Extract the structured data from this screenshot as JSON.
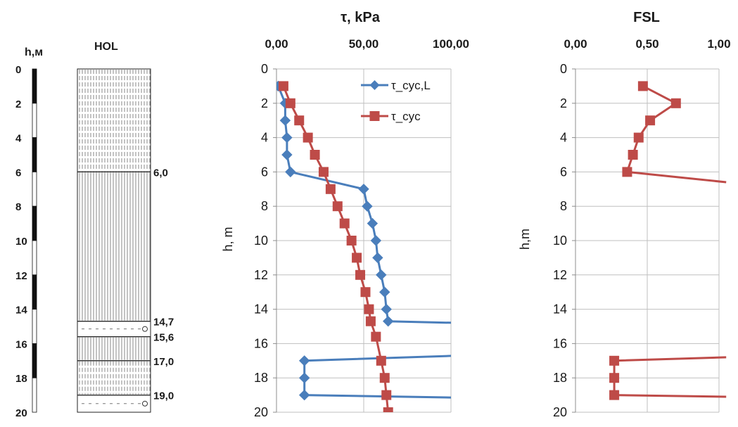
{
  "log_panel": {
    "depth_label": "h,м",
    "column_label": "HOL",
    "depth_ticks": [
      "0",
      "2",
      "4",
      "6",
      "8",
      "10",
      "12",
      "14",
      "16",
      "18",
      "20"
    ],
    "depth_range": [
      0,
      20
    ],
    "layer_boundaries": [
      {
        "depth": 6.0,
        "label": "6,0"
      },
      {
        "depth": 14.7,
        "label": "14,7"
      },
      {
        "depth": 15.6,
        "label": "15,6"
      },
      {
        "depth": 17.0,
        "label": "17,0"
      },
      {
        "depth": 19.0,
        "label": "19,0"
      }
    ],
    "layers": [
      {
        "top": 0,
        "bottom": 6.0,
        "pattern": "dotted-lines"
      },
      {
        "top": 6.0,
        "bottom": 14.7,
        "pattern": "lines"
      },
      {
        "top": 14.7,
        "bottom": 15.6,
        "pattern": "dashed-gravel"
      },
      {
        "top": 15.6,
        "bottom": 17.0,
        "pattern": "lines"
      },
      {
        "top": 17.0,
        "bottom": 19.0,
        "pattern": "dotted-lines"
      },
      {
        "top": 19.0,
        "bottom": 20.0,
        "pattern": "dashed-gravel"
      }
    ]
  },
  "chart_data": [
    {
      "type": "line",
      "title": "τ, kPa",
      "xlabel": "",
      "ylabel": "h, m",
      "xlim": [
        0,
        100
      ],
      "ylim": [
        0,
        20
      ],
      "y_inverted": true,
      "x_axis_position": "top",
      "x_ticks": [
        "0,00",
        "50,00",
        "100,00"
      ],
      "y_ticks": [
        "0",
        "2",
        "4",
        "6",
        "8",
        "10",
        "12",
        "14",
        "16",
        "18",
        "20"
      ],
      "grid": true,
      "legend": "top-right",
      "series": [
        {
          "name": "τ_cyc,L",
          "color": "#4a7ebb",
          "marker": "diamond",
          "points": [
            [
              1,
              1
            ],
            [
              5,
              2
            ],
            [
              5,
              3
            ],
            [
              6,
              4
            ],
            [
              6,
              5
            ],
            [
              8,
              6
            ],
            [
              50,
              7
            ],
            [
              52,
              8
            ],
            [
              55,
              9
            ],
            [
              57,
              10
            ],
            [
              58,
              11
            ],
            [
              60,
              12
            ],
            [
              62,
              13
            ],
            [
              63,
              14
            ],
            [
              64,
              14.7
            ],
            [
              105,
              14.8
            ],
            null,
            [
              105,
              16.7
            ],
            [
              16,
              17
            ],
            [
              16,
              18
            ],
            [
              16,
              19
            ],
            [
              105,
              19.15
            ]
          ]
        },
        {
          "name": "τ_cyc",
          "color": "#be4b48",
          "marker": "square",
          "points": [
            [
              4,
              1
            ],
            [
              8,
              2
            ],
            [
              13,
              3
            ],
            [
              18,
              4
            ],
            [
              22,
              5
            ],
            [
              27,
              6
            ],
            [
              31,
              7
            ],
            [
              35,
              8
            ],
            [
              39,
              9
            ],
            [
              43,
              10
            ],
            [
              46,
              11
            ],
            [
              48,
              12
            ],
            [
              51,
              13
            ],
            [
              53,
              14
            ],
            [
              54,
              14.7
            ],
            [
              57,
              15.6
            ],
            [
              60,
              17
            ],
            [
              62,
              18
            ],
            [
              63,
              19
            ],
            [
              64,
              20
            ]
          ]
        }
      ]
    },
    {
      "type": "line",
      "title": "FSL",
      "xlabel": "",
      "ylabel": "h,m",
      "xlim": [
        0,
        1
      ],
      "ylim": [
        0,
        20
      ],
      "y_inverted": true,
      "x_axis_position": "top",
      "x_ticks": [
        "0,00",
        "0,50",
        "1,00"
      ],
      "y_ticks": [
        "0",
        "2",
        "4",
        "6",
        "8",
        "10",
        "12",
        "14",
        "16",
        "18",
        "20"
      ],
      "grid": true,
      "series": [
        {
          "color": "#be4b48",
          "marker": "square",
          "points": [
            [
              0.47,
              1
            ],
            [
              0.7,
              2
            ],
            [
              0.52,
              3
            ],
            [
              0.44,
              4
            ],
            [
              0.4,
              5
            ],
            [
              0.36,
              6
            ],
            [
              1.05,
              6.6
            ],
            null,
            [
              1.05,
              16.8
            ],
            [
              0.27,
              17
            ],
            [
              0.27,
              18
            ],
            [
              0.27,
              19
            ],
            [
              1.05,
              19.1
            ]
          ]
        }
      ]
    }
  ]
}
